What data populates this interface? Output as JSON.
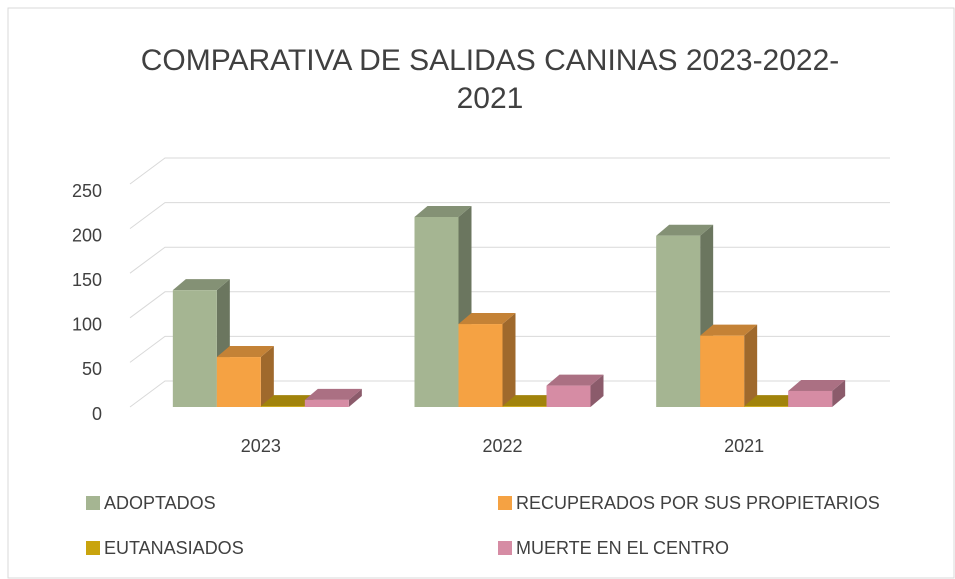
{
  "chart_data": {
    "type": "bar3d",
    "title": "COMPARATIVA DE SALIDAS CANINAS 2023-2022-2021",
    "categories": [
      "2023",
      "2022",
      "2021"
    ],
    "series": [
      {
        "name": "ADOPTADOS",
        "color": "#a5b592",
        "values": [
          131,
          213,
          192
        ]
      },
      {
        "name": "RECUPERADOS POR SUS PROPIETARIOS",
        "color": "#f5a243",
        "values": [
          56,
          93,
          80
        ]
      },
      {
        "name": "EUTANASIADOS",
        "color": "#c9a40e",
        "values": [
          1,
          1,
          1
        ]
      },
      {
        "name": "MUERTE EN EL CENTRO",
        "color": "#d68ca4",
        "values": [
          8,
          24,
          18
        ]
      }
    ],
    "ylim": [
      0,
      250
    ],
    "yticks": [
      0,
      50,
      100,
      150,
      200,
      250
    ],
    "grid": true,
    "legend": "bottom"
  }
}
